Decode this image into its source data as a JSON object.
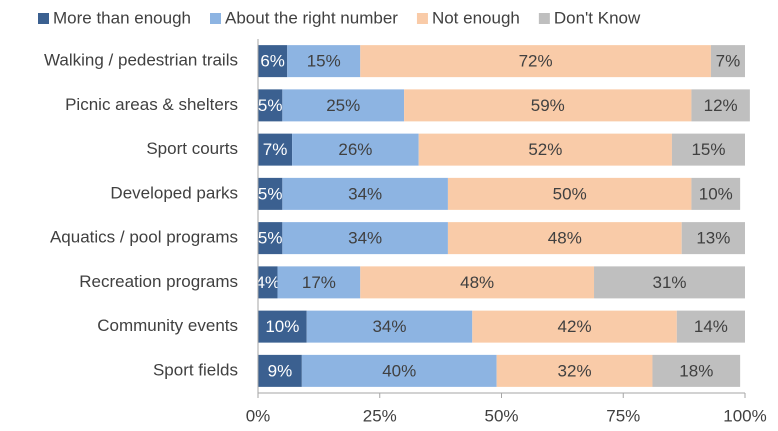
{
  "chart_data": {
    "type": "stacked_bar_horizontal",
    "categories": [
      "Walking / pedestrian trails",
      "Picnic areas & shelters",
      "Sport courts",
      "Developed parks",
      "Aquatics / pool programs",
      "Recreation programs",
      "Community events",
      "Sport fields"
    ],
    "series": [
      {
        "name": "More than enough",
        "color": "#3b6090",
        "values": [
          6,
          5,
          7,
          5,
          5,
          4,
          10,
          9
        ],
        "value_labels": [
          "6%",
          "5%",
          "7%",
          "5%",
          "5%",
          "4%",
          "10%",
          "9%"
        ]
      },
      {
        "name": "About the right number",
        "color": "#8db4e2",
        "values": [
          15,
          25,
          26,
          34,
          34,
          17,
          34,
          40
        ],
        "value_labels": [
          "15%",
          "25%",
          "26%",
          "34%",
          "34%",
          "17%",
          "34%",
          "40%"
        ]
      },
      {
        "name": "Not enough",
        "color": "#f9cba8",
        "values": [
          72,
          59,
          52,
          50,
          48,
          48,
          42,
          32
        ],
        "value_labels": [
          "72%",
          "59%",
          "52%",
          "50%",
          "48%",
          "48%",
          "42%",
          "32%"
        ]
      },
      {
        "name": "Don't Know",
        "color": "#bfbfbf",
        "values": [
          7,
          12,
          15,
          10,
          13,
          31,
          14,
          18
        ],
        "value_labels": [
          "7%",
          "12%",
          "15%",
          "10%",
          "13%",
          "31%",
          "14%",
          "18%"
        ]
      }
    ],
    "xlim": [
      0,
      100
    ],
    "xticks": [
      {
        "value": 0,
        "label": "0%"
      },
      {
        "value": 25,
        "label": "25%"
      },
      {
        "value": 50,
        "label": "50%"
      },
      {
        "value": 75,
        "label": "75%"
      },
      {
        "value": 100,
        "label": "100%"
      }
    ],
    "legend": "top"
  }
}
